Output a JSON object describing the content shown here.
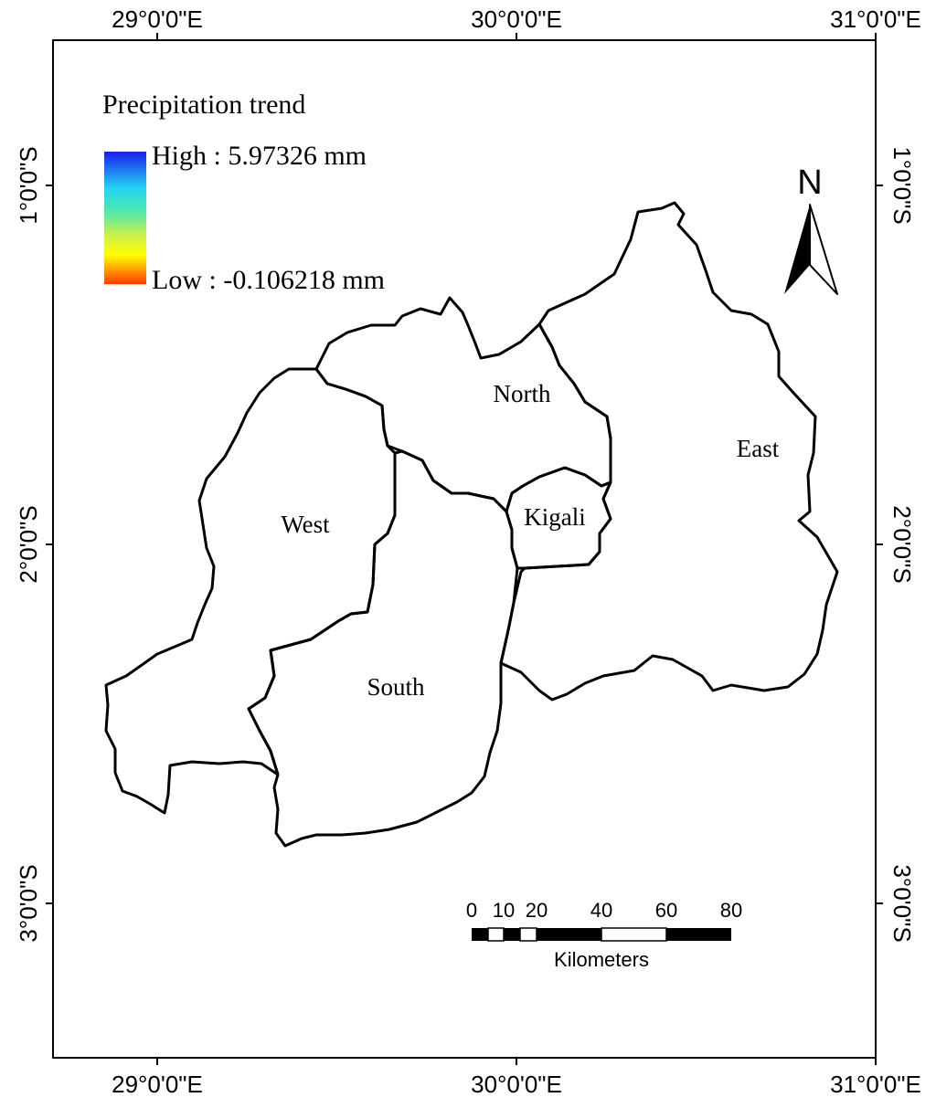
{
  "graticule": {
    "longitudes": [
      "29°0'0\"E",
      "30°0'0\"E",
      "31°0'0\"E"
    ],
    "latitudes": [
      "1°0'0\"S",
      "2°0'0\"S",
      "3°0'0\"S"
    ]
  },
  "legend": {
    "title": "Precipitation trend",
    "high_label": "High : 5.97326 mm",
    "low_label": "Low : -0.106218 mm",
    "high_value": 5.97326,
    "low_value": -0.106218,
    "unit": "mm",
    "ramp_colors": [
      "#1a1ef0",
      "#22d6f0",
      "#4ee8a8",
      "#d8f040",
      "#ffff00",
      "#ff3a00"
    ]
  },
  "regions": {
    "north": "North",
    "east": "East",
    "west": "West",
    "south": "South",
    "kigali": "Kigali"
  },
  "north_arrow": {
    "label": "N"
  },
  "scale_bar": {
    "ticks": [
      "0",
      "10",
      "20",
      "40",
      "60",
      "80"
    ],
    "unit": "Kilometers"
  }
}
